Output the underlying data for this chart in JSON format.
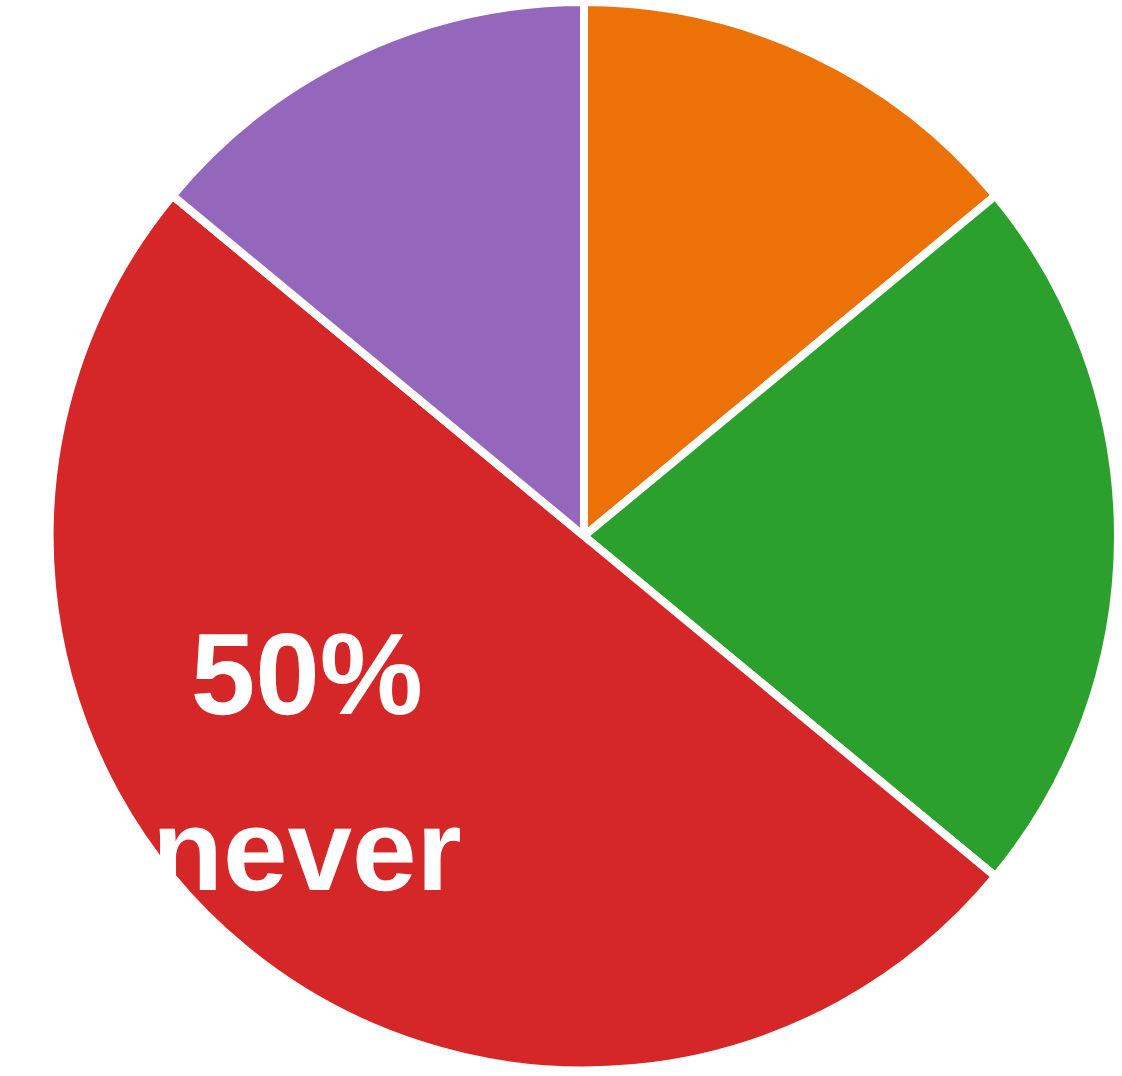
{
  "chart_data": {
    "type": "pie",
    "categories": [
      null,
      null,
      "never",
      null
    ],
    "values": [
      14,
      22,
      50,
      14
    ],
    "colors": [
      "#ec7208",
      "#2ca02c",
      "#d62728",
      "#9467bd"
    ],
    "value_labels": [
      null,
      null,
      "50%",
      null
    ]
  }
}
